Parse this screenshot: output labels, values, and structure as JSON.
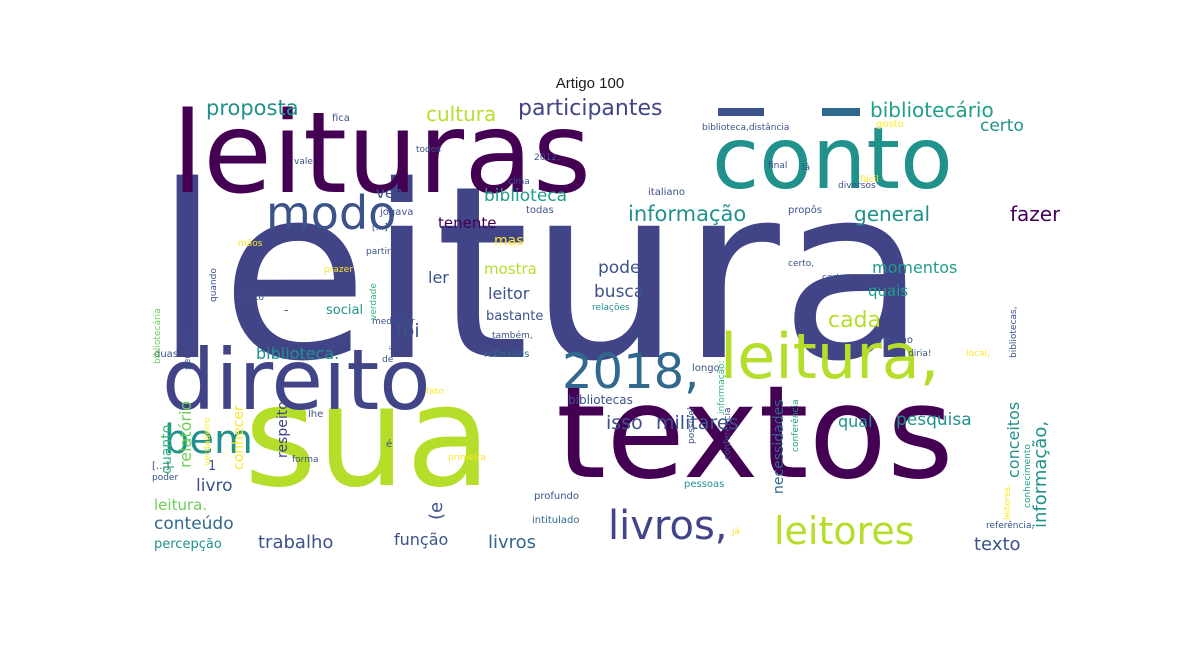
{
  "title": "Artigo 100",
  "colors": {
    "dark_purple": "#440154",
    "indigo": "#3b528b",
    "slate_blue": "#414487",
    "steel_blue": "#31688e",
    "teal": "#21918c",
    "sea_green": "#1f9e89",
    "green": "#35b779",
    "light_green": "#6ece58",
    "lime": "#b5de2b",
    "yellow": "#fde725"
  },
  "words": [
    {
      "text": "leitura"
    },
    {
      "text": "sua"
    },
    {
      "text": "textos"
    },
    {
      "text": "leituras"
    },
    {
      "text": "direito"
    },
    {
      "text": "conto"
    },
    {
      "text": "leitura,"
    },
    {
      "text": "2018,"
    },
    {
      "text": "bem"
    },
    {
      "text": "modo"
    },
    {
      "text": "livros,"
    },
    {
      "text": "leitores"
    },
    {
      "text": "participantes"
    },
    {
      "text": "proposta"
    },
    {
      "text": "cultura"
    },
    {
      "text": "bibliotecário"
    },
    {
      "text": "informação"
    },
    {
      "text": "general"
    },
    {
      "text": "fazer"
    },
    {
      "text": "certo"
    },
    {
      "text": "biblioteca"
    },
    {
      "text": "vez"
    },
    {
      "text": "tenente"
    },
    {
      "text": "mas"
    },
    {
      "text": "momentos"
    },
    {
      "text": "quais"
    },
    {
      "text": "pode"
    },
    {
      "text": "busca"
    },
    {
      "text": "mostra"
    },
    {
      "text": "leitor"
    },
    {
      "text": "foi"
    },
    {
      "text": "ler"
    },
    {
      "text": "cada"
    },
    {
      "text": "bastante"
    },
    {
      "text": "social"
    },
    {
      "text": "biblioteca."
    },
    {
      "text": "isso"
    },
    {
      "text": "militares"
    },
    {
      "text": "qual"
    },
    {
      "text": "pesquisa"
    },
    {
      "text": "livro"
    },
    {
      "text": "leitura."
    },
    {
      "text": "conteúdo"
    },
    {
      "text": "percepção"
    },
    {
      "text": "trabalho"
    },
    {
      "text": "função"
    },
    {
      "text": "livros"
    },
    {
      "text": "texto"
    },
    {
      "text": "relatório"
    },
    {
      "text": "quanto"
    },
    {
      "text": "conhecer"
    },
    {
      "text": "respeito"
    },
    {
      "text": "necessidades"
    },
    {
      "text": "conceitos"
    },
    {
      "text": "informação,"
    },
    {
      "text": "(e"
    },
    {
      "text": "1"
    },
    {
      "text": "mesmo"
    },
    {
      "text": "longo"
    },
    {
      "text": "bibliotecas"
    },
    {
      "text": "reflexões"
    },
    {
      "text": "literatura"
    },
    {
      "text": "profundo"
    },
    {
      "text": "intitulado"
    },
    {
      "text": "pessoas"
    },
    {
      "text": "italiano"
    },
    {
      "text": "todas"
    },
    {
      "text": "propôs"
    },
    {
      "text": "gosto"
    },
    {
      "text": "biblioteca,distância"
    },
    {
      "text": "diversos"
    },
    {
      "text": "final"
    },
    {
      "text": "fácil"
    },
    {
      "text": "bibliotecas,"
    },
    {
      "text": "fica"
    },
    {
      "text": "livre"
    },
    {
      "text": "todos"
    },
    {
      "text": "2012,"
    },
    {
      "text": "cima"
    },
    {
      "text": "jogava"
    },
    {
      "text": "certo,"
    },
    {
      "text": "mãos"
    },
    {
      "text": "partir"
    },
    {
      "text": "prazer"
    },
    {
      "text": "muito"
    },
    {
      "text": "mediador"
    },
    {
      "text": "também,"
    },
    {
      "text": "relações"
    },
    {
      "text": "conferência"
    },
    {
      "text": "certos"
    },
    {
      "text": "conhecimento"
    },
    {
      "text": "local,"
    },
    {
      "text": "diria!"
    },
    {
      "text": "leitores."
    },
    {
      "text": "duas"
    },
    {
      "text": "fato"
    },
    {
      "text": "lhe"
    },
    {
      "text": "[...]"
    },
    {
      "text": "poder"
    },
    {
      "text": "forma"
    },
    {
      "text": "principais:"
    },
    {
      "text": "usuários"
    },
    {
      "text": "realização"
    },
    {
      "text": "primeira"
    },
    {
      "text": "somente"
    },
    {
      "text": "melhoria"
    },
    {
      "text": "pessoas."
    },
    {
      "text": "vista colombiana,"
    },
    {
      "text": "sujeitos"
    },
    {
      "text": "distância."
    },
    {
      "text": "referência,"
    },
    {
      "text": "já"
    },
    {
      "text": "vale"
    },
    {
      "text": "quando"
    },
    {
      "text": "bibliotecária"
    },
    {
      "text": "perceber"
    },
    {
      "text": "verdade"
    },
    {
      "text": "possível"
    },
    {
      "text": "lá"
    },
    {
      "text": "de"
    },
    {
      "text": "verdadeiro"
    },
    {
      "text": "[...]"
    },
    {
      "text": "informação:"
    },
    {
      "text": "conferência"
    },
    {
      "text": "-"
    },
    {
      "text": "é"
    }
  ]
}
